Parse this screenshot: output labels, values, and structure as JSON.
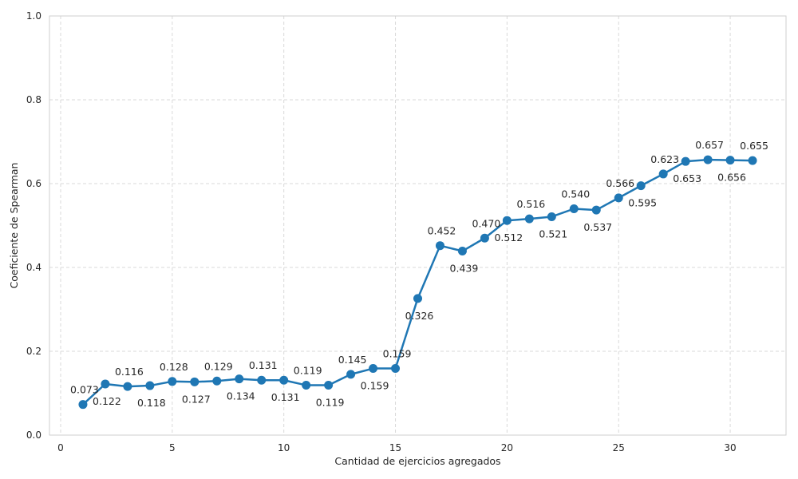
{
  "chart_data": {
    "type": "line",
    "title": "",
    "xlabel": "Cantidad de ejercicios agregados",
    "ylabel": "Coeficiente de Spearman",
    "xlim": [
      -0.5,
      32.5
    ],
    "ylim": [
      0.0,
      1.0
    ],
    "xticks": [
      0,
      5,
      10,
      15,
      20,
      25,
      30
    ],
    "yticks": [
      0.0,
      0.2,
      0.4,
      0.6,
      0.8,
      1.0
    ],
    "xtick_labels": [
      "0",
      "5",
      "10",
      "15",
      "20",
      "25",
      "30"
    ],
    "ytick_labels": [
      "0.0",
      "0.2",
      "0.4",
      "0.6",
      "0.8",
      "1.0"
    ],
    "grid": true,
    "color": "#1f77b4",
    "x": [
      1,
      2,
      3,
      4,
      5,
      6,
      7,
      8,
      9,
      10,
      11,
      12,
      13,
      14,
      15,
      16,
      17,
      18,
      19,
      20,
      21,
      22,
      23,
      24,
      25,
      26,
      27,
      28,
      29,
      30,
      31
    ],
    "y": [
      0.073,
      0.122,
      0.116,
      0.118,
      0.128,
      0.127,
      0.129,
      0.134,
      0.131,
      0.131,
      0.119,
      0.119,
      0.145,
      0.159,
      0.159,
      0.326,
      0.452,
      0.439,
      0.47,
      0.512,
      0.516,
      0.521,
      0.54,
      0.537,
      0.566,
      0.595,
      0.623,
      0.653,
      0.657,
      0.656,
      0.655
    ],
    "labels": [
      "0.073",
      "0.122",
      "0.116",
      "0.118",
      "0.128",
      "0.127",
      "0.129",
      "0.134",
      "0.131",
      "0.131",
      "0.119",
      "0.119",
      "0.145",
      "0.159",
      "0.159",
      "0.326",
      "0.452",
      "0.439",
      "0.470",
      "0.512",
      "0.516",
      "0.521",
      "0.540",
      "0.537",
      "0.566",
      "0.595",
      "0.623",
      "0.653",
      "0.657",
      "0.656",
      "0.655"
    ],
    "label_side": [
      "above",
      "below",
      "above",
      "below",
      "above",
      "below",
      "above",
      "below",
      "above",
      "below",
      "above",
      "below",
      "above",
      "below",
      "above",
      "below",
      "above",
      "below",
      "above",
      "below",
      "above",
      "below",
      "above",
      "below",
      "above",
      "below",
      "above",
      "below",
      "above",
      "below",
      "above"
    ]
  }
}
